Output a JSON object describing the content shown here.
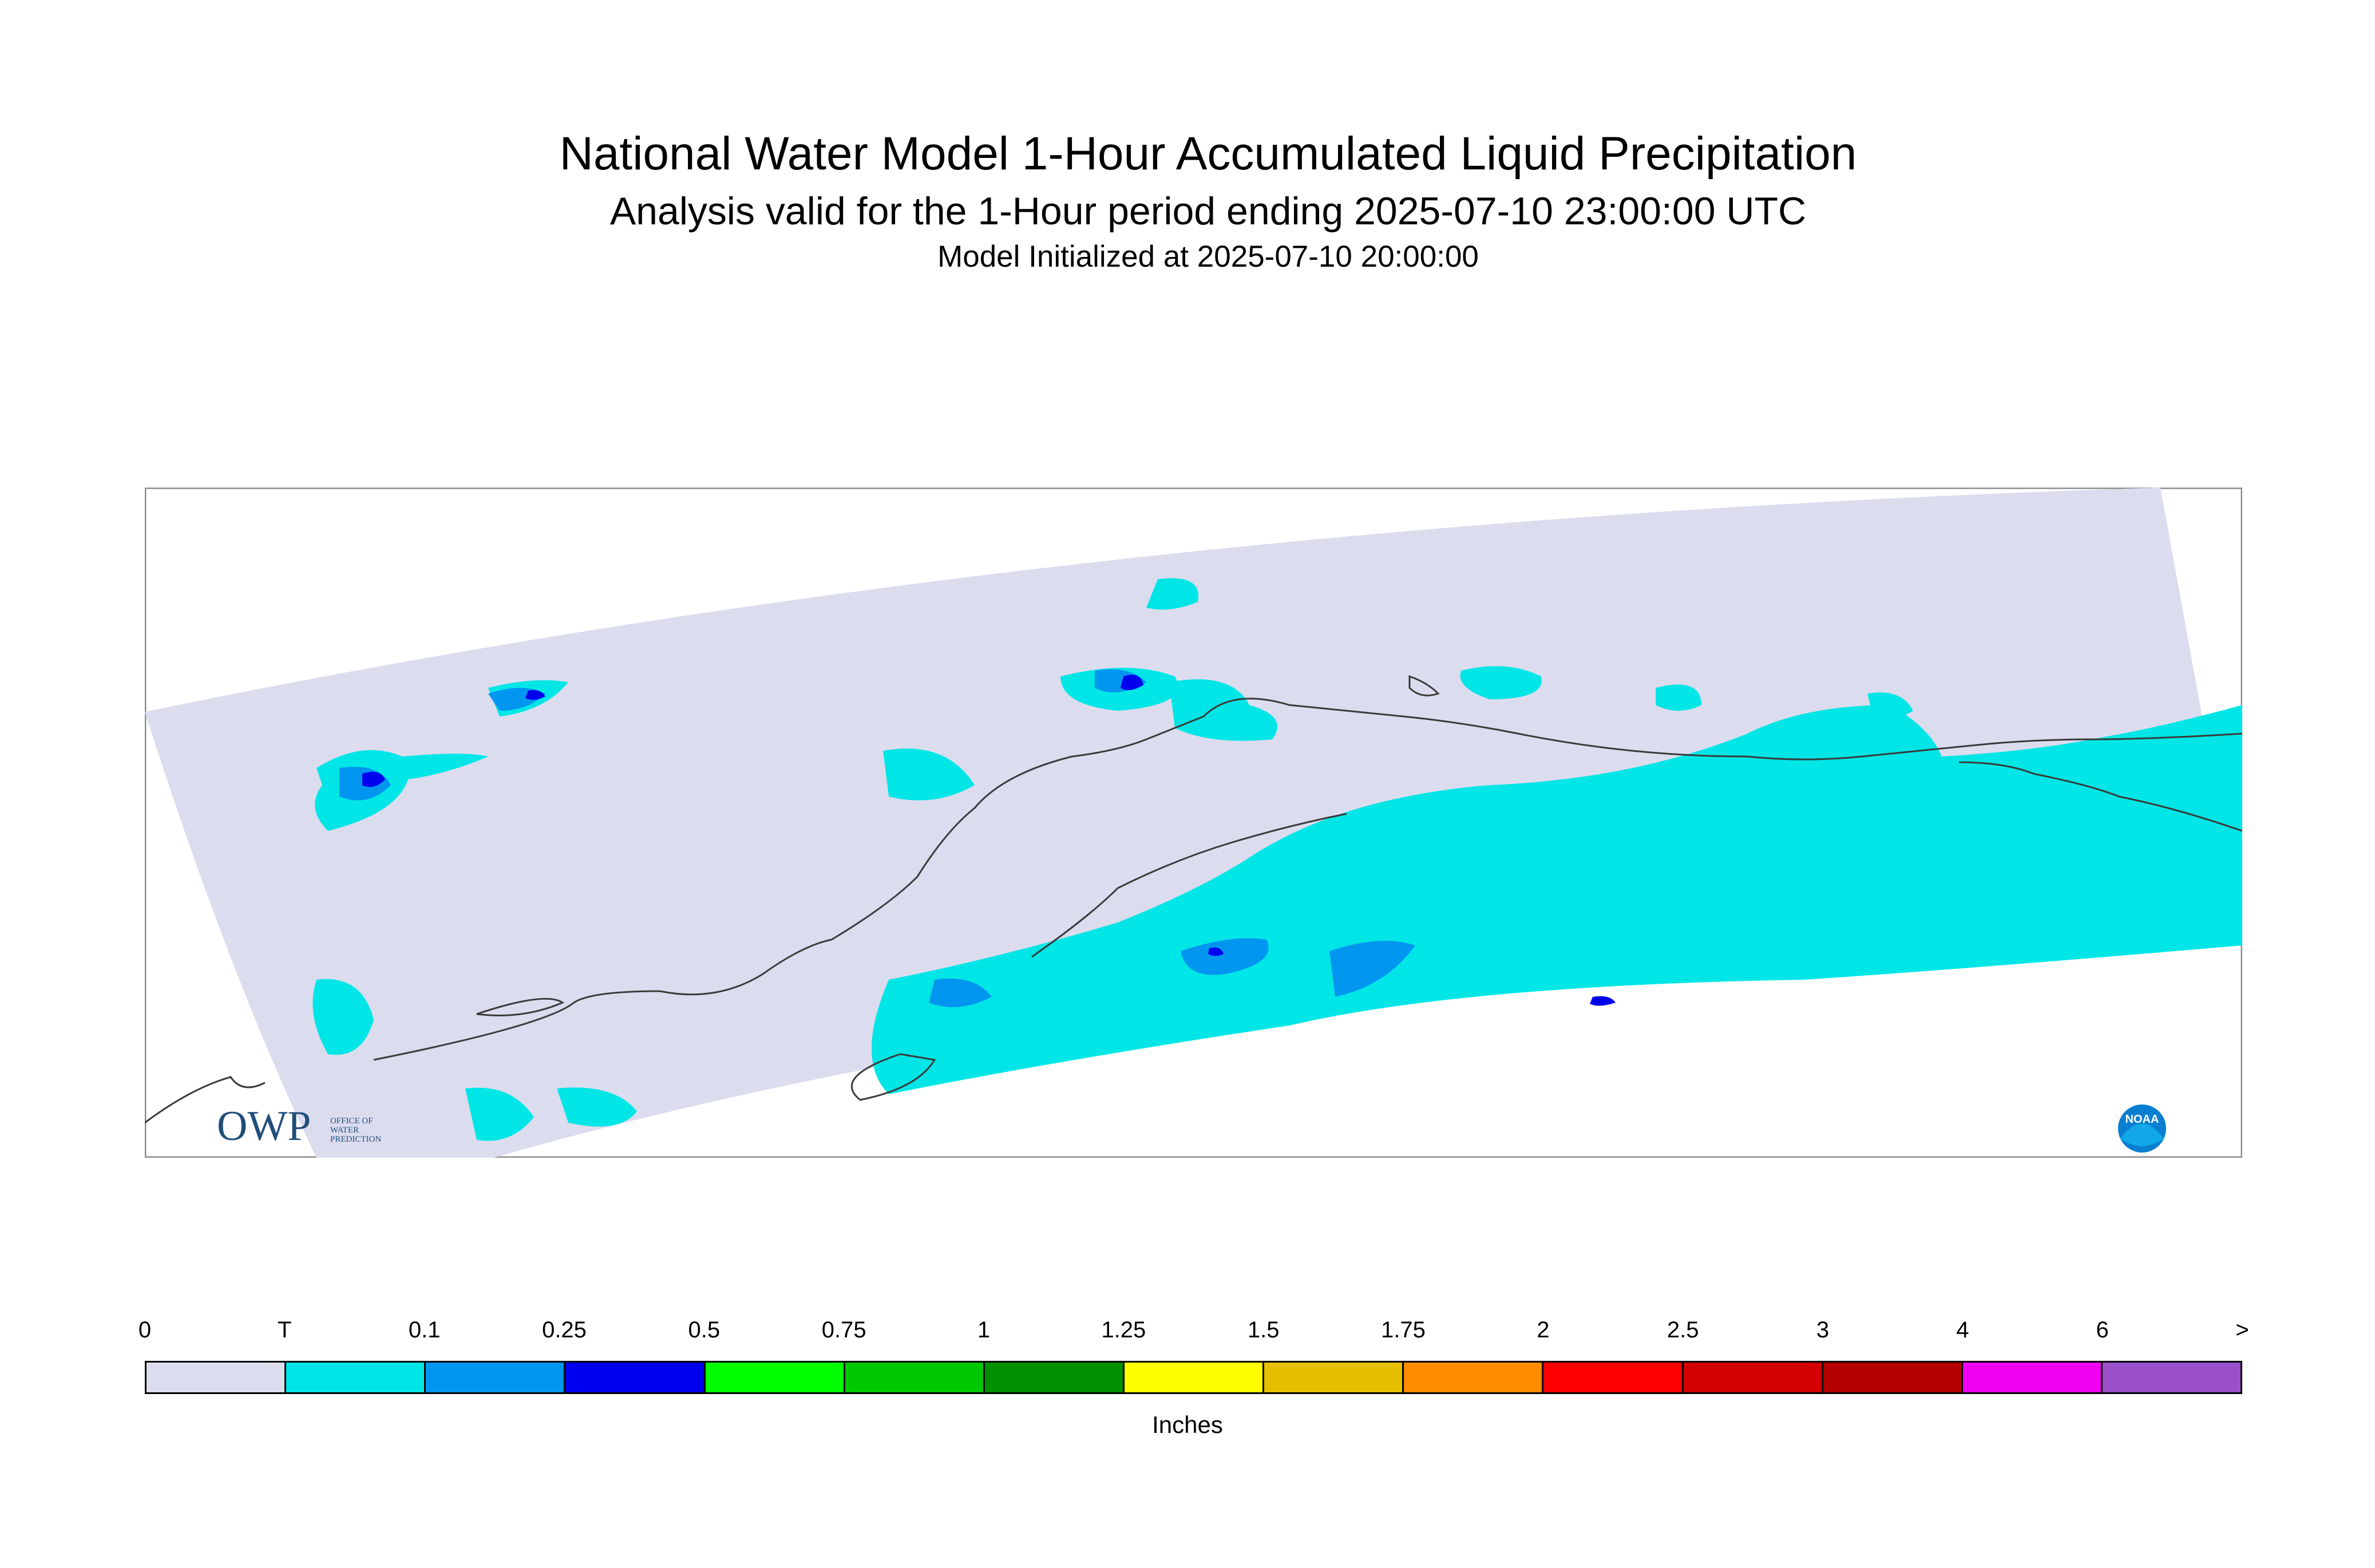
{
  "title": "National Water Model 1-Hour Accumulated Liquid Precipitation",
  "subtitle": "Analysis valid for the 1-Hour period ending 2025-07-10 23:00:00 UTC",
  "init_line": "Model Initialized at 2025-07-10 20:00:00",
  "colorbar": {
    "units": "Inches",
    "tick_labels": [
      "0",
      "T",
      "0.1",
      "0.25",
      "0.5",
      "0.75",
      "1",
      "1.25",
      "1.5",
      "1.75",
      "2",
      "2.5",
      "3",
      "4",
      "6",
      ">"
    ],
    "bins": [
      {
        "color": "#dcdcef"
      },
      {
        "color": "#00e6e6"
      },
      {
        "color": "#0096f0"
      },
      {
        "color": "#0000ee"
      },
      {
        "color": "#00ff00"
      },
      {
        "color": "#00c800"
      },
      {
        "color": "#009000"
      },
      {
        "color": "#ffff00"
      },
      {
        "color": "#e6c000"
      },
      {
        "color": "#ff8c00"
      },
      {
        "color": "#ff0000"
      },
      {
        "color": "#d20000"
      },
      {
        "color": "#b40000"
      },
      {
        "color": "#f000f0"
      },
      {
        "color": "#9a50c8"
      }
    ]
  },
  "map": {
    "domain_fill_color": "#dcdcef",
    "trace_color": "#00e6e6",
    "light_color": "#0096f0",
    "moderate_color": "#0000ee"
  },
  "logos": {
    "owp": {
      "letters": "OWP",
      "lines": [
        "OFFICE OF",
        "WATER",
        "PREDICTION"
      ]
    },
    "noaa": {
      "letters": "NOAA"
    }
  }
}
